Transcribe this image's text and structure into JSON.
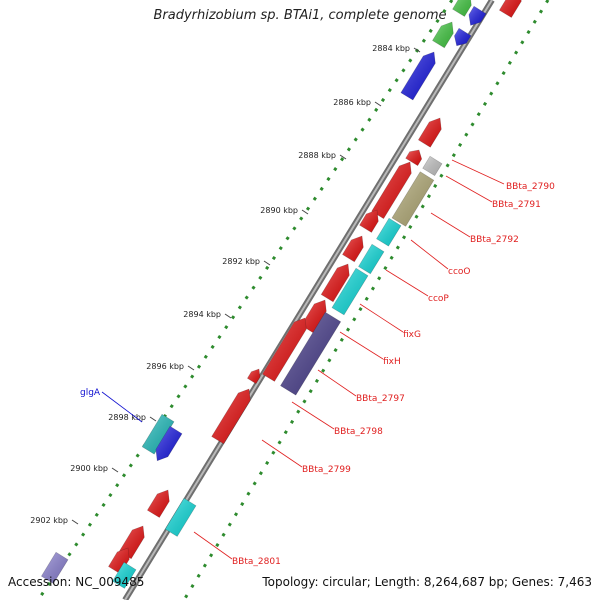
{
  "header": {
    "title": "Bradyrhizobium sp. BTAi1, complete genome"
  },
  "footer": {
    "accession": "Accession: NC_009485",
    "summary": "Topology: circular; Length: 8,264,687 bp; Genes: 7,463"
  },
  "colors": {
    "backbone": "#8a8a8a",
    "gc_dots": "#2e8b2e",
    "red": "#ee1111",
    "blue": "#1a1ae6",
    "cyan": "#10e0e0",
    "green": "#44cc44",
    "gray": "#c8c8c8",
    "olive": "#b5ad78",
    "navy": "#4a3f8f",
    "teal": "#20c0c0",
    "lavender": "#8d83d6",
    "label_red": "#e02020",
    "label_blue": "#1010d0"
  },
  "ticks": [
    {
      "label": "2884 kbp"
    },
    {
      "label": "2886 kbp"
    },
    {
      "label": "2888 kbp"
    },
    {
      "label": "2890 kbp"
    },
    {
      "label": "2892 kbp"
    },
    {
      "label": "2894 kbp"
    },
    {
      "label": "2896 kbp"
    },
    {
      "label": "2898 kbp"
    },
    {
      "label": "2900 kbp"
    },
    {
      "label": "2902 kbp"
    }
  ],
  "gene_labels": [
    {
      "name": "BBta_2790",
      "color": "red"
    },
    {
      "name": "BBta_2791",
      "color": "red"
    },
    {
      "name": "BBta_2792",
      "color": "red"
    },
    {
      "name": "ccoO",
      "color": "red"
    },
    {
      "name": "ccoP",
      "color": "red"
    },
    {
      "name": "fixG",
      "color": "red"
    },
    {
      "name": "fixH",
      "color": "red"
    },
    {
      "name": "BBta_2797",
      "color": "red"
    },
    {
      "name": "BBta_2798",
      "color": "red"
    },
    {
      "name": "BBta_2799",
      "color": "red"
    },
    {
      "name": "BBta_2801",
      "color": "red"
    },
    {
      "name": "glgA",
      "color": "blue"
    }
  ]
}
